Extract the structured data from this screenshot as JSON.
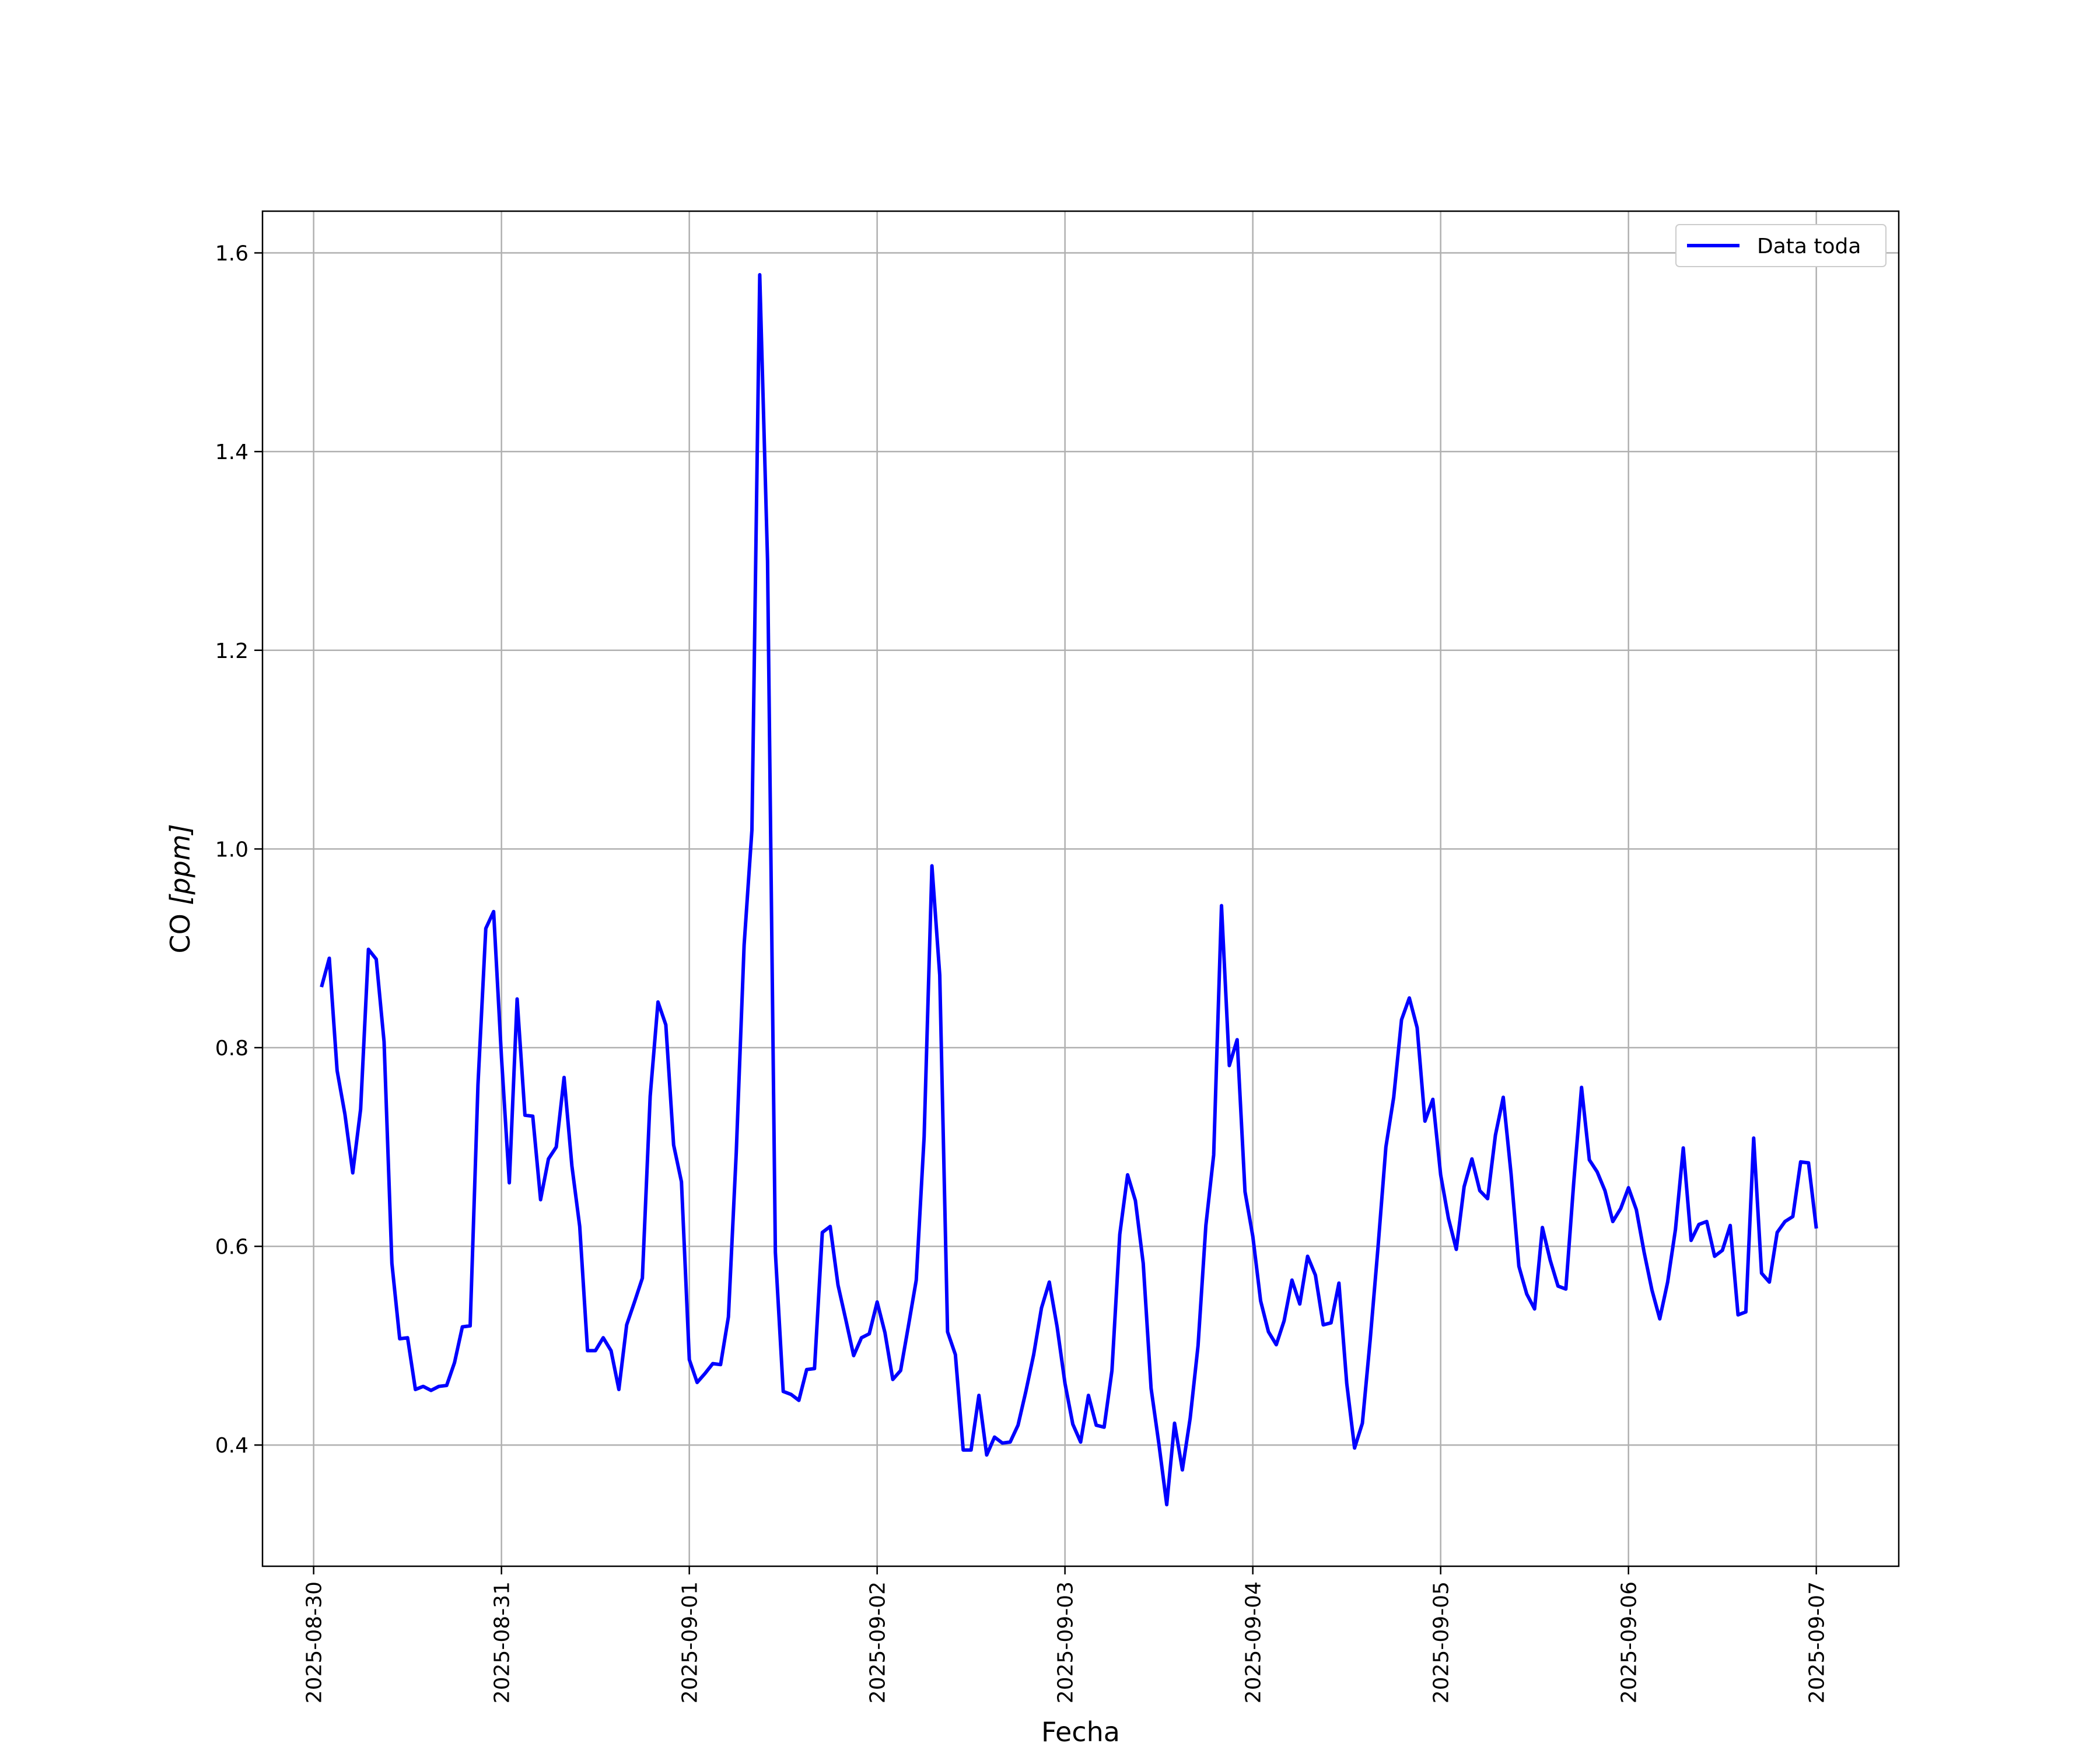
{
  "chart_data": {
    "type": "line",
    "xlabel": "Fecha",
    "ylabel_main": "CO ",
    "ylabel_unit": "[ppm]",
    "x_ticks": [
      "2025-08-30",
      "2025-08-31",
      "2025-09-01",
      "2025-09-02",
      "2025-09-03",
      "2025-09-04",
      "2025-09-05",
      "2025-09-06",
      "2025-09-07"
    ],
    "y_ticks": [
      "0.4",
      "0.6",
      "0.8",
      "1.0",
      "1.2",
      "1.4",
      "1.6"
    ],
    "xlim": [
      "2025-08-29T17:28",
      "2025-09-07T10:32"
    ],
    "ylim": [
      0.278,
      1.642
    ],
    "grid": true,
    "legend_position": "upper-right",
    "series": [
      {
        "name": "Data toda",
        "color": "#0000ff",
        "x": [
          "2025-08-30T01:00",
          "2025-08-30T02:00",
          "2025-08-30T03:00",
          "2025-08-30T04:00",
          "2025-08-30T05:00",
          "2025-08-30T06:00",
          "2025-08-30T07:00",
          "2025-08-30T08:00",
          "2025-08-30T09:00",
          "2025-08-30T10:00",
          "2025-08-30T11:00",
          "2025-08-30T12:00",
          "2025-08-30T13:00",
          "2025-08-30T14:00",
          "2025-08-30T15:00",
          "2025-08-30T16:00",
          "2025-08-30T17:00",
          "2025-08-30T18:00",
          "2025-08-30T19:00",
          "2025-08-30T20:00",
          "2025-08-30T21:00",
          "2025-08-30T22:00",
          "2025-08-30T23:00",
          "2025-08-31T00:00",
          "2025-08-31T01:00",
          "2025-08-31T02:00",
          "2025-08-31T03:00",
          "2025-08-31T04:00",
          "2025-08-31T05:00",
          "2025-08-31T06:00",
          "2025-08-31T07:00",
          "2025-08-31T08:00",
          "2025-08-31T09:00",
          "2025-08-31T10:00",
          "2025-08-31T11:00",
          "2025-08-31T12:00",
          "2025-08-31T13:00",
          "2025-08-31T14:00",
          "2025-08-31T15:00",
          "2025-08-31T16:00",
          "2025-08-31T17:00",
          "2025-08-31T18:00",
          "2025-08-31T19:00",
          "2025-08-31T20:00",
          "2025-08-31T21:00",
          "2025-08-31T22:00",
          "2025-08-31T23:00",
          "2025-09-01T00:00",
          "2025-09-01T01:00",
          "2025-09-01T02:00",
          "2025-09-01T03:00",
          "2025-09-01T04:00",
          "2025-09-01T05:00",
          "2025-09-01T06:00",
          "2025-09-01T07:00",
          "2025-09-01T08:00",
          "2025-09-01T09:00",
          "2025-09-01T10:00",
          "2025-09-01T11:00",
          "2025-09-01T12:00",
          "2025-09-01T13:00",
          "2025-09-01T14:00",
          "2025-09-01T15:00",
          "2025-09-01T16:00",
          "2025-09-01T17:00",
          "2025-09-01T18:00",
          "2025-09-01T19:00",
          "2025-09-01T20:00",
          "2025-09-01T21:00",
          "2025-09-01T22:00",
          "2025-09-01T23:00",
          "2025-09-02T00:00",
          "2025-09-02T01:00",
          "2025-09-02T02:00",
          "2025-09-02T03:00",
          "2025-09-02T04:00",
          "2025-09-02T05:00",
          "2025-09-02T06:00",
          "2025-09-02T07:00",
          "2025-09-02T08:00",
          "2025-09-02T09:00",
          "2025-09-02T10:00",
          "2025-09-02T11:00",
          "2025-09-02T12:00",
          "2025-09-02T13:00",
          "2025-09-02T14:00",
          "2025-09-02T15:00",
          "2025-09-02T16:00",
          "2025-09-02T17:00",
          "2025-09-02T18:00",
          "2025-09-02T19:00",
          "2025-09-02T20:00",
          "2025-09-02T21:00",
          "2025-09-02T22:00",
          "2025-09-02T23:00",
          "2025-09-03T00:00",
          "2025-09-03T01:00",
          "2025-09-03T02:00",
          "2025-09-03T03:00",
          "2025-09-03T04:00",
          "2025-09-03T05:00",
          "2025-09-03T06:00",
          "2025-09-03T07:00",
          "2025-09-03T08:00",
          "2025-09-03T09:00",
          "2025-09-03T10:00",
          "2025-09-03T11:00",
          "2025-09-03T12:00",
          "2025-09-03T13:00",
          "2025-09-03T14:00",
          "2025-09-03T15:00",
          "2025-09-03T16:00",
          "2025-09-03T17:00",
          "2025-09-03T18:00",
          "2025-09-03T19:00",
          "2025-09-03T20:00",
          "2025-09-03T21:00",
          "2025-09-03T22:00",
          "2025-09-03T23:00",
          "2025-09-04T00:00",
          "2025-09-04T01:00",
          "2025-09-04T02:00",
          "2025-09-04T03:00",
          "2025-09-04T04:00",
          "2025-09-04T05:00",
          "2025-09-04T06:00",
          "2025-09-04T07:00",
          "2025-09-04T08:00",
          "2025-09-04T09:00",
          "2025-09-04T10:00",
          "2025-09-04T11:00",
          "2025-09-04T12:00",
          "2025-09-04T13:00",
          "2025-09-04T14:00",
          "2025-09-04T15:00",
          "2025-09-04T16:00",
          "2025-09-04T17:00",
          "2025-09-04T18:00",
          "2025-09-04T19:00",
          "2025-09-04T20:00",
          "2025-09-04T21:00",
          "2025-09-04T22:00",
          "2025-09-04T23:00",
          "2025-09-05T00:00",
          "2025-09-05T01:00",
          "2025-09-05T02:00",
          "2025-09-05T03:00",
          "2025-09-05T04:00",
          "2025-09-05T05:00",
          "2025-09-05T06:00",
          "2025-09-05T07:00",
          "2025-09-05T08:00",
          "2025-09-05T09:00",
          "2025-09-05T10:00",
          "2025-09-05T11:00",
          "2025-09-05T12:00",
          "2025-09-05T13:00",
          "2025-09-05T14:00",
          "2025-09-05T15:00",
          "2025-09-05T16:00",
          "2025-09-05T17:00",
          "2025-09-05T18:00",
          "2025-09-05T19:00",
          "2025-09-05T20:00",
          "2025-09-05T21:00",
          "2025-09-05T22:00",
          "2025-09-05T23:00",
          "2025-09-06T00:00",
          "2025-09-06T01:00",
          "2025-09-06T02:00",
          "2025-09-06T03:00",
          "2025-09-06T04:00",
          "2025-09-06T05:00",
          "2025-09-06T06:00",
          "2025-09-06T07:00",
          "2025-09-06T08:00",
          "2025-09-06T09:00",
          "2025-09-06T10:00",
          "2025-09-06T11:00",
          "2025-09-06T12:00",
          "2025-09-06T13:00",
          "2025-09-06T14:00",
          "2025-09-06T15:00",
          "2025-09-06T16:00",
          "2025-09-06T17:00",
          "2025-09-06T18:00",
          "2025-09-06T19:00",
          "2025-09-06T20:00",
          "2025-09-06T21:00",
          "2025-09-06T22:00",
          "2025-09-06T23:00",
          "2025-09-07T00:00"
        ],
        "y": [
          0.861,
          0.89,
          0.777,
          0.733,
          0.674,
          0.738,
          0.899,
          0.889,
          0.806,
          0.583,
          0.507,
          0.508,
          0.456,
          0.459,
          0.455,
          0.459,
          0.46,
          0.483,
          0.519,
          0.52,
          0.763,
          0.92,
          0.937,
          0.79,
          0.664,
          0.849,
          0.732,
          0.731,
          0.647,
          0.688,
          0.7,
          0.77,
          0.681,
          0.62,
          0.495,
          0.495,
          0.508,
          0.495,
          0.456,
          0.521,
          0.544,
          0.568,
          0.751,
          0.846,
          0.823,
          0.702,
          0.665,
          0.486,
          0.463,
          0.472,
          0.482,
          0.481,
          0.529,
          0.695,
          0.903,
          1.019,
          1.578,
          1.29,
          0.594,
          0.454,
          0.451,
          0.445,
          0.476,
          0.477,
          0.614,
          0.62,
          0.561,
          0.526,
          0.49,
          0.508,
          0.512,
          0.544,
          0.513,
          0.466,
          0.475,
          0.52,
          0.566,
          0.71,
          0.983,
          0.873,
          0.514,
          0.491,
          0.395,
          0.395,
          0.45,
          0.39,
          0.408,
          0.402,
          0.403,
          0.42,
          0.454,
          0.491,
          0.538,
          0.564,
          0.519,
          0.462,
          0.421,
          0.403,
          0.45,
          0.42,
          0.418,
          0.475,
          0.612,
          0.672,
          0.646,
          0.583,
          0.457,
          0.401,
          0.34,
          0.422,
          0.375,
          0.427,
          0.5,
          0.621,
          0.692,
          0.943,
          0.782,
          0.808,
          0.655,
          0.61,
          0.545,
          0.514,
          0.501,
          0.525,
          0.566,
          0.542,
          0.59,
          0.571,
          0.521,
          0.523,
          0.563,
          0.462,
          0.397,
          0.422,
          0.506,
          0.599,
          0.7,
          0.75,
          0.828,
          0.85,
          0.82,
          0.726,
          0.748,
          0.672,
          0.628,
          0.597,
          0.66,
          0.688,
          0.656,
          0.648,
          0.712,
          0.75,
          0.673,
          0.58,
          0.552,
          0.537,
          0.619,
          0.586,
          0.56,
          0.557,
          0.664,
          0.76,
          0.687,
          0.675,
          0.656,
          0.625,
          0.638,
          0.659,
          0.637,
          0.594,
          0.556,
          0.527,
          0.564,
          0.617,
          0.699,
          0.606,
          0.622,
          0.625,
          0.59,
          0.596,
          0.621,
          0.531,
          0.534,
          0.709,
          0.573,
          0.564,
          0.614,
          0.625,
          0.63,
          0.685,
          0.684,
          0.618
        ]
      }
    ]
  }
}
